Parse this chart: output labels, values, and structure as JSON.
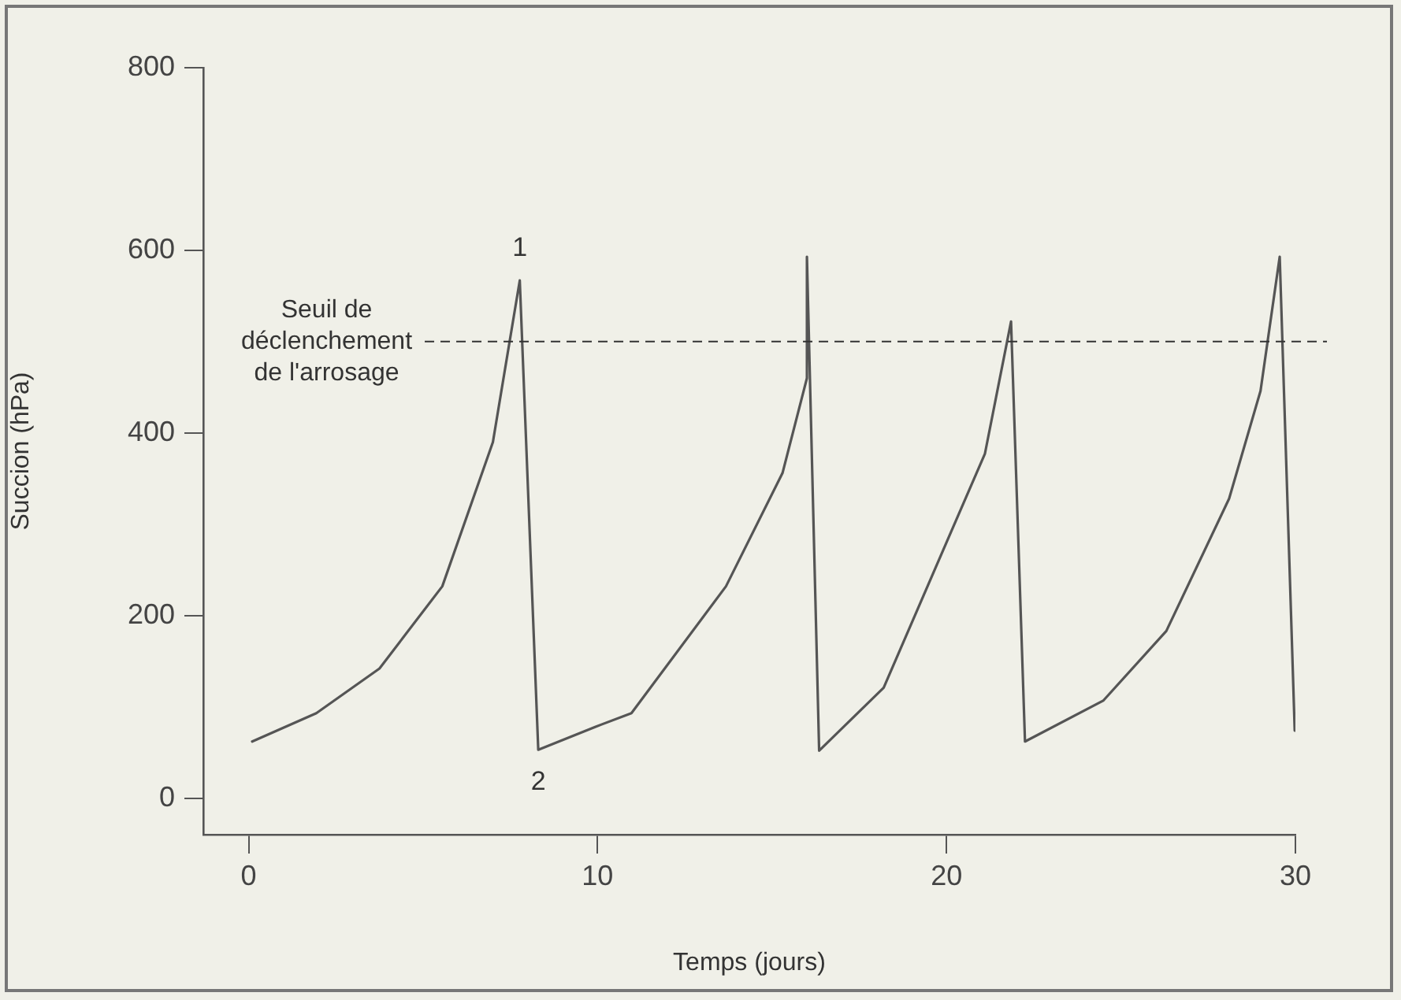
{
  "chart_data": {
    "type": "line",
    "xlabel": "Temps (jours)",
    "ylabel": "Succion (hPa)",
    "xlim": [
      -1.3,
      30
    ],
    "ylim": [
      -40,
      800
    ],
    "xticks": [
      0,
      10,
      20,
      30
    ],
    "yticks": [
      0,
      200,
      400,
      600,
      800
    ],
    "grid": false,
    "legend": false,
    "marker": "none",
    "line_style": "solid",
    "series": [
      {
        "color": "#555555",
        "x": [
          0.1,
          1.94,
          3.75,
          5.55,
          7.0,
          7.77,
          8.3,
          9.93,
          10.97,
          13.68,
          15.3,
          16.0,
          16.0,
          16.35,
          18.2,
          20.0,
          21.1,
          21.85,
          22.25,
          24.5,
          26.3,
          28.1,
          29.0,
          29.55,
          29.98
        ],
        "values": [
          62,
          93,
          142,
          232,
          390,
          567,
          53,
          78,
          93,
          232,
          356,
          460,
          593,
          52,
          121,
          280,
          377,
          522,
          62,
          107,
          183,
          328,
          446,
          593,
          74
        ]
      }
    ],
    "ref_lines": [
      {
        "axis": "y",
        "value": 500,
        "label": "Seuil de déclenchement de l'arrosage",
        "line_style": "dashed",
        "color": "#333333"
      }
    ],
    "annotations": [
      {
        "text": "1",
        "x": 7.77,
        "y": 567
      },
      {
        "text": "2",
        "x": 8.3,
        "y": 53
      }
    ]
  }
}
